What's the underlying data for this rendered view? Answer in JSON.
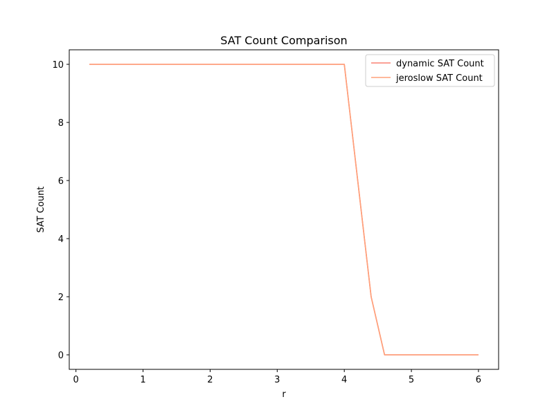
{
  "chart_data": {
    "type": "line",
    "title": "SAT Count Comparison",
    "xlabel": "r",
    "ylabel": "SAT Count",
    "xlim": [
      -0.1,
      6.3
    ],
    "ylim": [
      -0.5,
      10.5
    ],
    "xticks": [
      0,
      1,
      2,
      3,
      4,
      5,
      6
    ],
    "yticks": [
      0,
      2,
      4,
      6,
      8,
      10
    ],
    "grid": false,
    "legend_position": "upper right",
    "x": [
      0.2,
      4.0,
      4.2,
      4.4,
      4.6,
      6.0
    ],
    "series": [
      {
        "name": "dynamic SAT Count",
        "color": "#fa8072",
        "values": [
          10,
          10,
          6,
          2,
          0,
          0
        ]
      },
      {
        "name": "jeroslow SAT Count",
        "color": "#ffa07a",
        "values": [
          10,
          10,
          6,
          2,
          0,
          0
        ]
      }
    ]
  }
}
